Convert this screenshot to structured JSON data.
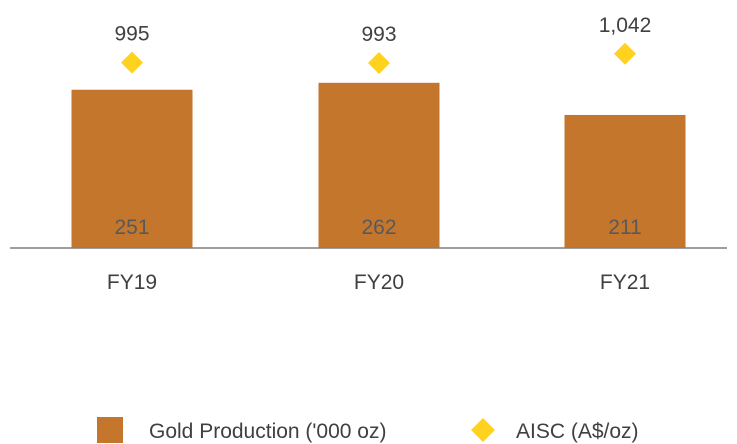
{
  "chart_data": {
    "type": "bar",
    "categories": [
      "FY19",
      "FY20",
      "FY21"
    ],
    "series": [
      {
        "name": "Gold Production ('000 oz)",
        "kind": "bar",
        "values": [
          251,
          262,
          211
        ],
        "labels": [
          "251",
          "262",
          "211"
        ],
        "color": "#C4762C"
      },
      {
        "name": "AISC (A$/oz)",
        "kind": "marker",
        "marker": "diamond",
        "values": [
          995,
          993,
          1042
        ],
        "labels": [
          "995",
          "993",
          "1,042"
        ],
        "color": "#FFD21F"
      }
    ],
    "legend_position": "bottom",
    "grid": false,
    "colors": {
      "axis": "#7f7f7f",
      "text": "#404040",
      "bar_label": "#595959"
    }
  }
}
